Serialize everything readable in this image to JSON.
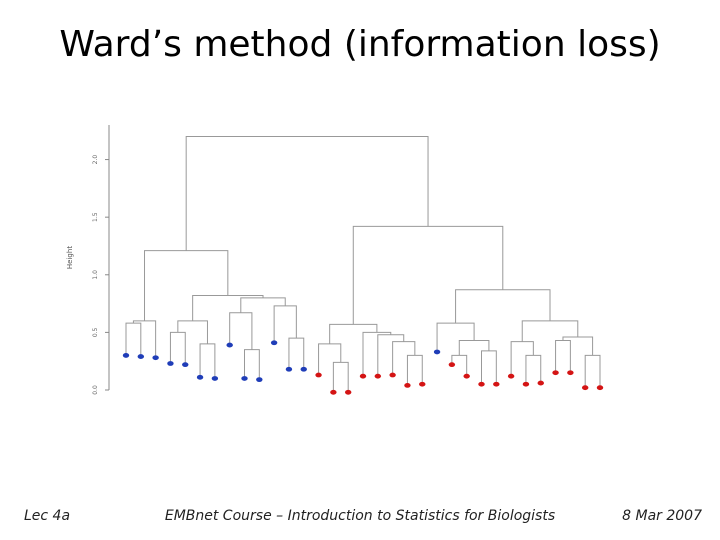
{
  "slide": {
    "title": "Ward’s method (information loss)",
    "footer_left": "Lec 4a",
    "footer_center": "EMBnet Course – Introduction to Statistics for Biologists",
    "footer_right": "8 Mar 2007"
  },
  "chart_data": {
    "type": "dendrogram",
    "ylabel": "Height",
    "ylim": [
      0,
      2.3
    ],
    "yticks": [
      "0.0",
      "0.5",
      "1.0",
      "1.5",
      "2.0"
    ],
    "yticks_values": [
      0.0,
      0.5,
      1.0,
      1.5,
      2.0
    ],
    "colors": {
      "blue": "#1f3db8",
      "red": "#d41414",
      "line": "#999999"
    },
    "leaves": [
      {
        "color": "blue",
        "y": 0.3
      },
      {
        "color": "blue",
        "y": 0.29
      },
      {
        "color": "blue",
        "y": 0.28
      },
      {
        "color": "blue",
        "y": 0.23
      },
      {
        "color": "blue",
        "y": 0.22
      },
      {
        "color": "blue",
        "y": 0.11
      },
      {
        "color": "blue",
        "y": 0.1
      },
      {
        "color": "blue",
        "y": 0.39
      },
      {
        "color": "blue",
        "y": 0.1
      },
      {
        "color": "blue",
        "y": 0.09
      },
      {
        "color": "blue",
        "y": 0.41
      },
      {
        "color": "blue",
        "y": 0.18
      },
      {
        "color": "blue",
        "y": 0.18
      },
      {
        "color": "red",
        "y": 0.13
      },
      {
        "color": "red",
        "y": -0.02
      },
      {
        "color": "red",
        "y": -0.02
      },
      {
        "color": "red",
        "y": 0.12
      },
      {
        "color": "red",
        "y": 0.12
      },
      {
        "color": "red",
        "y": 0.13
      },
      {
        "color": "red",
        "y": 0.04
      },
      {
        "color": "red",
        "y": 0.05
      },
      {
        "color": "blue",
        "y": 0.33
      },
      {
        "color": "red",
        "y": 0.22
      },
      {
        "color": "red",
        "y": 0.12
      },
      {
        "color": "red",
        "y": 0.05
      },
      {
        "color": "red",
        "y": 0.05
      },
      {
        "color": "red",
        "y": 0.12
      },
      {
        "color": "red",
        "y": 0.05
      },
      {
        "color": "red",
        "y": 0.06
      },
      {
        "color": "red",
        "y": 0.15
      },
      {
        "color": "red",
        "y": 0.15
      },
      {
        "color": "red",
        "y": 0.02
      },
      {
        "color": "red",
        "y": 0.02
      }
    ],
    "merges": [
      {
        "children": [
          "L0",
          "L1"
        ],
        "height": 0.58
      },
      {
        "children": [
          "L3",
          "L4"
        ],
        "height": 0.5
      },
      {
        "children": [
          "L5",
          "L6"
        ],
        "height": 0.4
      },
      {
        "children": [
          "L8",
          "L9"
        ],
        "height": 0.35
      },
      {
        "children": [
          "L7",
          "M3"
        ],
        "height": 0.67
      },
      {
        "children": [
          "L11",
          "L12"
        ],
        "height": 0.45
      },
      {
        "children": [
          "M0",
          "L2"
        ],
        "height": 0.6
      },
      {
        "children": [
          "M1",
          "M2"
        ],
        "height": 0.6
      },
      {
        "children": [
          "L10",
          "M5"
        ],
        "height": 0.73
      },
      {
        "children": [
          "M4",
          "M8"
        ],
        "height": 0.8
      },
      {
        "children": [
          "M7",
          "M9"
        ],
        "height": 0.82
      },
      {
        "children": [
          "M6",
          "M10"
        ],
        "height": 1.21
      },
      {
        "children": [
          "L14",
          "L15"
        ],
        "height": 0.24
      },
      {
        "children": [
          "L13",
          "M12"
        ],
        "height": 0.4
      },
      {
        "children": [
          "L19",
          "L20"
        ],
        "height": 0.3
      },
      {
        "children": [
          "L18",
          "M14"
        ],
        "height": 0.42
      },
      {
        "children": [
          "L17",
          "M15"
        ],
        "height": 0.48
      },
      {
        "children": [
          "L16",
          "M16"
        ],
        "height": 0.5
      },
      {
        "children": [
          "M13",
          "M17"
        ],
        "height": 0.57
      },
      {
        "children": [
          "L22",
          "L23"
        ],
        "height": 0.3
      },
      {
        "children": [
          "L24",
          "L25"
        ],
        "height": 0.34
      },
      {
        "children": [
          "M19",
          "M20"
        ],
        "height": 0.43
      },
      {
        "children": [
          "L21",
          "M21"
        ],
        "height": 0.58
      },
      {
        "children": [
          "L27",
          "L28"
        ],
        "height": 0.3
      },
      {
        "children": [
          "L26",
          "M23"
        ],
        "height": 0.42
      },
      {
        "children": [
          "L31",
          "L32"
        ],
        "height": 0.3
      },
      {
        "children": [
          "L29",
          "L30"
        ],
        "height": 0.43
      },
      {
        "children": [
          "M26",
          "M25"
        ],
        "height": 0.46
      },
      {
        "children": [
          "M24",
          "M27"
        ],
        "height": 0.6
      },
      {
        "children": [
          "M22",
          "M28"
        ],
        "height": 0.87
      },
      {
        "children": [
          "M18",
          "M29"
        ],
        "height": 1.42
      },
      {
        "children": [
          "M11",
          "M30"
        ],
        "height": 2.2
      }
    ]
  }
}
